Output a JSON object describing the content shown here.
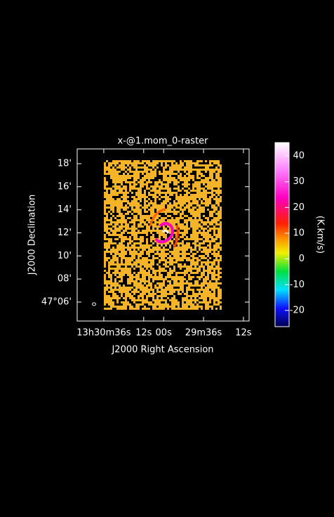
{
  "chart_data": {
    "type": "raster",
    "title": "x-@1.mom_0-raster",
    "xlabel": "J2000 Right Ascension",
    "ylabel": "J2000 Declination",
    "colorbar_label": "(K.km/s)",
    "xlim": [
      112,
      8.6
    ],
    "xticks": [
      {
        "value": 96,
        "label": "13h30m36s"
      },
      {
        "value": 72,
        "label": "12s"
      },
      {
        "value": 60,
        "label": "00s"
      },
      {
        "value": 36,
        "label": "29m36s"
      },
      {
        "value": 12,
        "label": "12s"
      }
    ],
    "ylim": [
      47.0726,
      47.3213
    ],
    "yticks": [
      {
        "value": 47.1,
        "label": "47°06'"
      },
      {
        "value": 47.1333,
        "label": "08'"
      },
      {
        "value": 47.1667,
        "label": "10'"
      },
      {
        "value": 47.2,
        "label": "12'"
      },
      {
        "value": 47.2333,
        "label": "14'"
      },
      {
        "value": 47.2667,
        "label": "16'"
      },
      {
        "value": 47.3,
        "label": "18'"
      }
    ],
    "clim": [
      -26.3,
      45.2
    ],
    "cticks": [
      -20,
      -10,
      0,
      10,
      20,
      30,
      40
    ]
  }
}
